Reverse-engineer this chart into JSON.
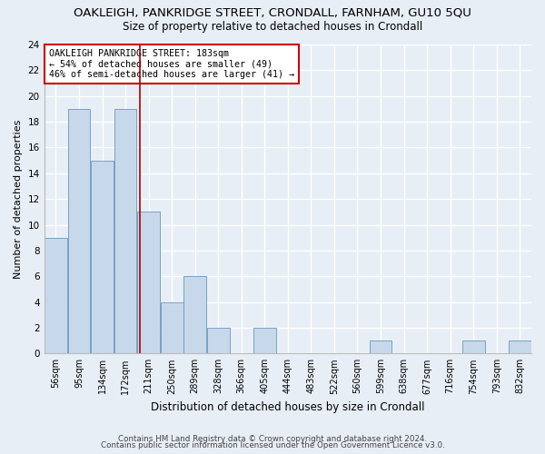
{
  "title": "OAKLEIGH, PANKRIDGE STREET, CRONDALL, FARNHAM, GU10 5QU",
  "subtitle": "Size of property relative to detached houses in Crondall",
  "xlabel": "Distribution of detached houses by size in Crondall",
  "ylabel": "Number of detached properties",
  "footer1": "Contains HM Land Registry data © Crown copyright and database right 2024.",
  "footer2": "Contains public sector information licensed under the Open Government Licence v3.0.",
  "bin_labels": [
    "56sqm",
    "95sqm",
    "134sqm",
    "172sqm",
    "211sqm",
    "250sqm",
    "289sqm",
    "328sqm",
    "366sqm",
    "405sqm",
    "444sqm",
    "483sqm",
    "522sqm",
    "560sqm",
    "599sqm",
    "638sqm",
    "677sqm",
    "716sqm",
    "754sqm",
    "793sqm",
    "832sqm"
  ],
  "values": [
    9,
    19,
    15,
    19,
    11,
    4,
    6,
    2,
    0,
    2,
    0,
    0,
    0,
    0,
    1,
    0,
    0,
    0,
    1,
    0,
    1
  ],
  "bar_color": "#c8d8eb",
  "bar_edge_color": "#6699bb",
  "background_color": "#e8eef6",
  "grid_color": "#ffffff",
  "annotation_text": "OAKLEIGH PANKRIDGE STREET: 183sqm\n← 54% of detached houses are smaller (49)\n46% of semi-detached houses are larger (41) →",
  "red_line_x": 3.62,
  "ylim": [
    0,
    24
  ],
  "yticks": [
    0,
    2,
    4,
    6,
    8,
    10,
    12,
    14,
    16,
    18,
    20,
    22,
    24
  ],
  "annotation_box_color": "#ffffff",
  "annotation_box_edge": "#cc0000",
  "red_line_color": "#aa0000"
}
